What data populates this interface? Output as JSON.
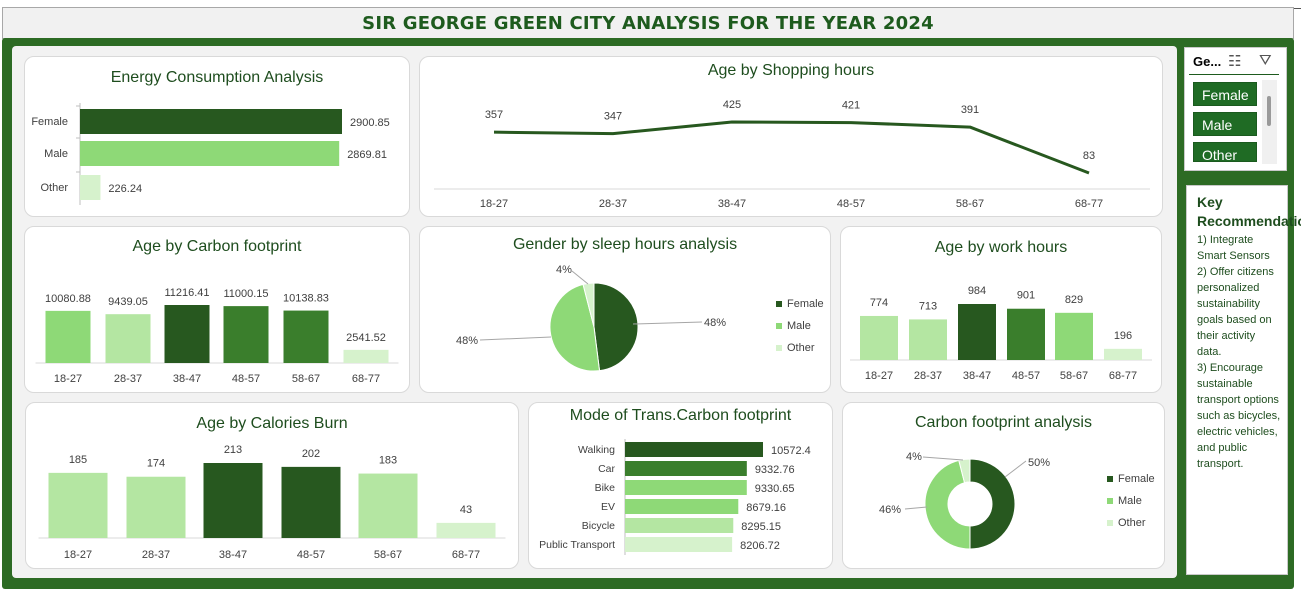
{
  "page_title": "SIR GEORGE GREEN CITY ANALYSIS FOR THE YEAR 2024",
  "colors": {
    "dark_green": "#27581f",
    "mid_green": "#3a7e2c",
    "green": "#5aa83c",
    "light_green": "#8ed977",
    "pale_green": "#b4e6a2",
    "paler_green": "#d6f2cc",
    "frame_green": "#2d6b24"
  },
  "slicer": {
    "header": "Ge...",
    "icons": [
      "multi-select-icon",
      "clear-filter-icon"
    ],
    "items": [
      "Female",
      "Male",
      "Other"
    ]
  },
  "recommendations": {
    "title": "Key Recommendations",
    "items": [
      "1) Integrate Smart Sensors",
      "2) Offer citizens personalized sustainability goals based on their activity data.",
      "3) Encourage sustainable transport options such as bicycles, electric vehicles, and public transport."
    ]
  },
  "chart_data": [
    {
      "id": "energy",
      "type": "bar",
      "orientation": "horizontal",
      "title": "Energy Consumption Analysis",
      "categories": [
        "Female",
        "Male",
        "Other"
      ],
      "values": [
        2900.85,
        2869.81,
        226.24
      ],
      "value_labels": [
        "2900.85",
        "2869.81",
        "226.24"
      ]
    },
    {
      "id": "shopping",
      "type": "line",
      "title": "Age  by Shopping hours",
      "categories": [
        "18-27",
        "28-37",
        "38-47",
        "48-57",
        "58-67",
        "68-77"
      ],
      "values": [
        357,
        347,
        425,
        421,
        391,
        83
      ],
      "value_labels": [
        "357",
        "347",
        "425",
        "421",
        "391",
        "83"
      ]
    },
    {
      "id": "carbon_age",
      "type": "bar",
      "title": "Age by Carbon footprint",
      "categories": [
        "18-27",
        "28-37",
        "38-47",
        "48-57",
        "58-67",
        "68-77"
      ],
      "values": [
        10080.88,
        9439.05,
        11216.41,
        11000.15,
        10138.83,
        2541.52
      ],
      "value_labels": [
        "10080.88",
        "9439.05",
        "11216.41",
        "11000.15",
        "10138.83",
        "2541.52"
      ]
    },
    {
      "id": "sleep",
      "type": "pie",
      "title": "Gender by sleep hours analysis",
      "categories": [
        "Female",
        "Male",
        "Other"
      ],
      "values": [
        48,
        48,
        4
      ],
      "value_labels": [
        "48%",
        "48%",
        "4%"
      ],
      "legend": "right"
    },
    {
      "id": "work",
      "type": "bar",
      "title": "Age by work hours",
      "categories": [
        "18-27",
        "28-37",
        "38-47",
        "48-57",
        "58-67",
        "68-77"
      ],
      "values": [
        774,
        713,
        984,
        901,
        829,
        196
      ],
      "value_labels": [
        "774",
        "713",
        "984",
        "901",
        "829",
        "196"
      ]
    },
    {
      "id": "calories",
      "type": "bar",
      "title": "Age by Calories Burn",
      "categories": [
        "18-27",
        "28-37",
        "38-47",
        "48-57",
        "58-67",
        "68-77"
      ],
      "values": [
        185,
        174,
        213,
        202,
        183,
        43
      ],
      "value_labels": [
        "185",
        "174",
        "213",
        "202",
        "183",
        "43"
      ]
    },
    {
      "id": "transport",
      "type": "bar",
      "orientation": "horizontal",
      "title": "Mode of Trans.Carbon footprint",
      "categories": [
        "Walking",
        "Car",
        "Bike",
        "EV",
        "Bicycle",
        "Public Transport"
      ],
      "values": [
        10572.4,
        9332.76,
        9330.65,
        8679.16,
        8295.15,
        8206.72
      ],
      "value_labels": [
        "10572.4",
        "9332.76",
        "9330.65",
        "8679.16",
        "8295.15",
        "8206.72"
      ]
    },
    {
      "id": "carbon_gender",
      "type": "pie",
      "subtype": "doughnut",
      "title": "Carbon footprint analysis",
      "categories": [
        "Female",
        "Male",
        "Other"
      ],
      "values": [
        50,
        46,
        4
      ],
      "value_labels": [
        "50%",
        "46%",
        "4%"
      ],
      "legend": "right"
    }
  ]
}
